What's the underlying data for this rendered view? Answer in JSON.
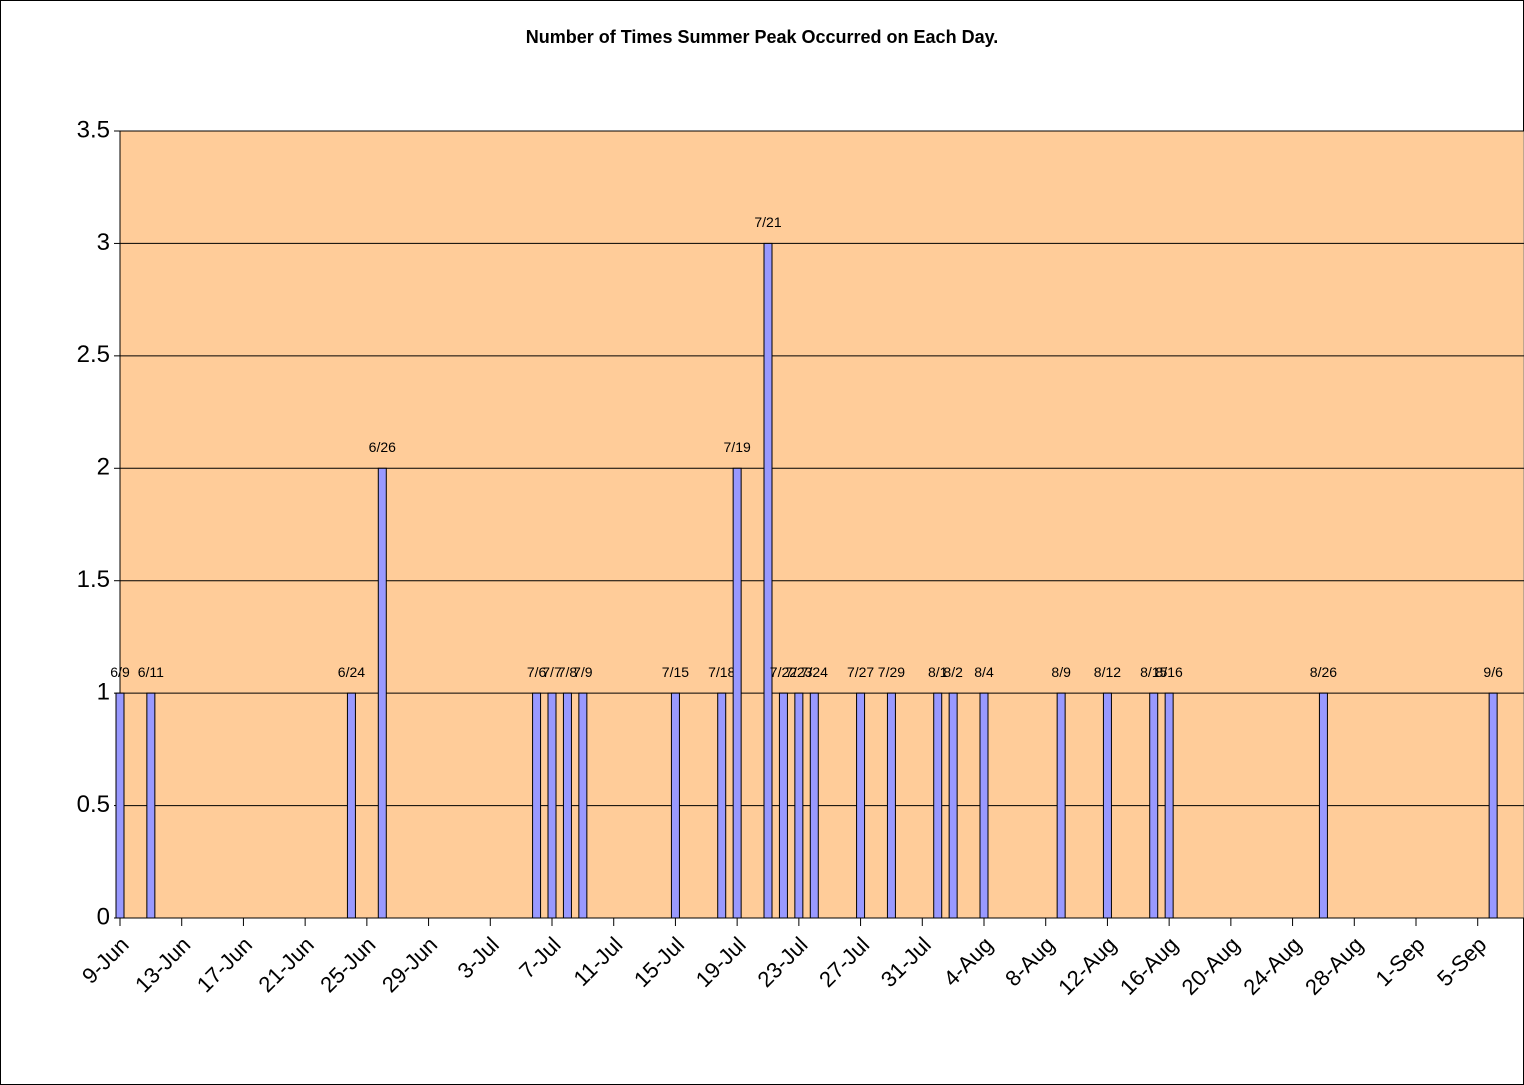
{
  "chart_data": {
    "type": "bar",
    "title": "Number of Times Summer Peak Occurred on Each Day.",
    "x": [
      "6/9",
      "6/11",
      "6/24",
      "6/26",
      "7/6",
      "7/7",
      "7/8",
      "7/9",
      "7/15",
      "7/18",
      "7/19",
      "7/21",
      "7/22",
      "7/23",
      "7/24",
      "7/27",
      "7/29",
      "8/1",
      "8/2",
      "8/4",
      "8/9",
      "8/12",
      "8/15",
      "8/16",
      "8/26",
      "9/6"
    ],
    "values": [
      1,
      1,
      1,
      2,
      1,
      1,
      1,
      1,
      1,
      1,
      2,
      3,
      1,
      1,
      1,
      1,
      1,
      1,
      1,
      1,
      1,
      1,
      1,
      1,
      1,
      1
    ],
    "color": "#9999ff",
    "background": "#ffcc99",
    "xlim": [
      "9-Jun",
      "8-Sep"
    ],
    "xticks": [
      "9-Jun",
      "13-Jun",
      "17-Jun",
      "21-Jun",
      "25-Jun",
      "29-Jun",
      "3-Jul",
      "7-Jul",
      "11-Jul",
      "15-Jul",
      "19-Jul",
      "23-Jul",
      "27-Jul",
      "31-Jul",
      "4-Aug",
      "8-Aug",
      "12-Aug",
      "16-Aug",
      "20-Aug",
      "24-Aug",
      "28-Aug",
      "1-Sep",
      "5-Sep"
    ],
    "ylim": [
      0,
      3.5
    ],
    "yticks": [
      0,
      0.5,
      1,
      1.5,
      2,
      2.5,
      3,
      3.5
    ],
    "grid": true
  }
}
